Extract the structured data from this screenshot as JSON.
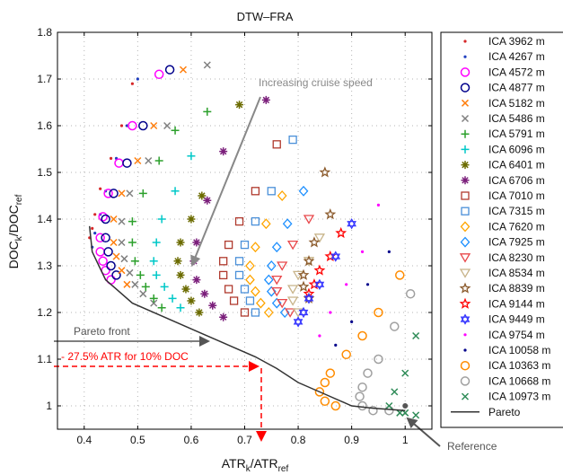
{
  "chart_data": {
    "type": "scatter",
    "title": "DTW–FRA",
    "xlabel": {
      "main": "ATR",
      "sub1": "k",
      "mid": "/ATR",
      "sub2": "ref"
    },
    "ylabel": {
      "main": "DOC",
      "sub1": "k",
      "mid": "/DOC",
      "sub2": "ref"
    },
    "xlim": [
      0.35,
      1.05
    ],
    "ylim": [
      0.95,
      1.8
    ],
    "xticks": [
      0.4,
      0.5,
      0.6,
      0.7,
      0.8,
      0.9,
      1
    ],
    "yticks": [
      1,
      1.1,
      1.2,
      1.3,
      1.4,
      1.5,
      1.6,
      1.7,
      1.8
    ],
    "xtick_labels": [
      "0.4",
      "0.5",
      "0.6",
      "0.7",
      "0.8",
      "0.9",
      "1"
    ],
    "ytick_labels": [
      "1",
      "1.1",
      "1.2",
      "1.3",
      "1.4",
      "1.5",
      "1.6",
      "1.7",
      "1.8"
    ],
    "grid": true,
    "legend_position": "right-outside",
    "series": [
      {
        "name": "ICA 3962 m",
        "color": "#d62728",
        "marker": "dot",
        "points": [
          [
            0.49,
            1.69
          ],
          [
            0.47,
            1.6
          ],
          [
            0.45,
            1.53
          ],
          [
            0.43,
            1.465
          ],
          [
            0.42,
            1.41
          ],
          [
            0.415,
            1.38
          ],
          [
            0.41,
            1.36
          ]
        ]
      },
      {
        "name": "ICA 4267 m",
        "color": "#1f3fbf",
        "marker": "dot",
        "points": [
          [
            0.5,
            1.7
          ],
          [
            0.48,
            1.6
          ],
          [
            0.46,
            1.53
          ],
          [
            0.44,
            1.46
          ],
          [
            0.43,
            1.41
          ],
          [
            0.42,
            1.37
          ],
          [
            0.415,
            1.34
          ]
        ]
      },
      {
        "name": "ICA 4572 m",
        "color": "#ff00ff",
        "marker": "circle",
        "points": [
          [
            0.54,
            1.71
          ],
          [
            0.49,
            1.6
          ],
          [
            0.465,
            1.52
          ],
          [
            0.445,
            1.455
          ],
          [
            0.435,
            1.405
          ],
          [
            0.43,
            1.36
          ],
          [
            0.43,
            1.33
          ],
          [
            0.435,
            1.31
          ],
          [
            0.44,
            1.29
          ],
          [
            0.45,
            1.27
          ]
        ]
      },
      {
        "name": "ICA 4877 m",
        "color": "#00008b",
        "marker": "circle",
        "points": [
          [
            0.56,
            1.72
          ],
          [
            0.51,
            1.6
          ],
          [
            0.48,
            1.52
          ],
          [
            0.455,
            1.455
          ],
          [
            0.44,
            1.4
          ],
          [
            0.44,
            1.36
          ],
          [
            0.445,
            1.33
          ],
          [
            0.45,
            1.3
          ],
          [
            0.46,
            1.28
          ]
        ]
      },
      {
        "name": "ICA 5182 m",
        "color": "#ff7f0e",
        "marker": "x",
        "points": [
          [
            0.585,
            1.72
          ],
          [
            0.53,
            1.6
          ],
          [
            0.5,
            1.525
          ],
          [
            0.47,
            1.455
          ],
          [
            0.455,
            1.4
          ],
          [
            0.455,
            1.35
          ],
          [
            0.46,
            1.32
          ],
          [
            0.47,
            1.29
          ],
          [
            0.48,
            1.26
          ]
        ]
      },
      {
        "name": "ICA 5486 m",
        "color": "#808080",
        "marker": "x",
        "points": [
          [
            0.63,
            1.73
          ],
          [
            0.555,
            1.6
          ],
          [
            0.52,
            1.525
          ],
          [
            0.485,
            1.455
          ],
          [
            0.47,
            1.395
          ],
          [
            0.47,
            1.35
          ],
          [
            0.475,
            1.315
          ],
          [
            0.485,
            1.285
          ],
          [
            0.495,
            1.26
          ],
          [
            0.51,
            1.24
          ],
          [
            0.53,
            1.22
          ]
        ]
      },
      {
        "name": "ICA 5791 m",
        "color": "#2ca02c",
        "marker": "plus",
        "points": [
          [
            0.63,
            1.63
          ],
          [
            0.57,
            1.59
          ],
          [
            0.54,
            1.525
          ],
          [
            0.51,
            1.455
          ],
          [
            0.49,
            1.395
          ],
          [
            0.49,
            1.35
          ],
          [
            0.495,
            1.31
          ],
          [
            0.505,
            1.28
          ],
          [
            0.515,
            1.255
          ],
          [
            0.53,
            1.23
          ],
          [
            0.545,
            1.21
          ]
        ]
      },
      {
        "name": "ICA 6096 m",
        "color": "#00c8c8",
        "marker": "plus",
        "points": [
          [
            0.6,
            1.535
          ],
          [
            0.57,
            1.46
          ],
          [
            0.545,
            1.4
          ],
          [
            0.535,
            1.35
          ],
          [
            0.53,
            1.31
          ],
          [
            0.535,
            1.28
          ],
          [
            0.55,
            1.255
          ],
          [
            0.565,
            1.23
          ],
          [
            0.58,
            1.21
          ]
        ]
      },
      {
        "name": "ICA 6401 m",
        "color": "#6b6b00",
        "marker": "asterisk",
        "points": [
          [
            0.69,
            1.645
          ],
          [
            0.62,
            1.45
          ],
          [
            0.6,
            1.4
          ],
          [
            0.58,
            1.35
          ],
          [
            0.575,
            1.31
          ],
          [
            0.58,
            1.28
          ],
          [
            0.59,
            1.25
          ],
          [
            0.6,
            1.225
          ],
          [
            0.615,
            1.2
          ]
        ]
      },
      {
        "name": "ICA 6706 m",
        "color": "#7b1f7b",
        "marker": "asterisk",
        "points": [
          [
            0.74,
            1.655
          ],
          [
            0.66,
            1.545
          ],
          [
            0.63,
            1.44
          ],
          [
            0.61,
            1.35
          ],
          [
            0.605,
            1.31
          ],
          [
            0.61,
            1.27
          ],
          [
            0.625,
            1.24
          ],
          [
            0.64,
            1.215
          ],
          [
            0.66,
            1.19
          ]
        ]
      },
      {
        "name": "ICA 7010 m",
        "color": "#b03a2e",
        "marker": "square",
        "points": [
          [
            0.76,
            1.56
          ],
          [
            0.72,
            1.46
          ],
          [
            0.69,
            1.395
          ],
          [
            0.67,
            1.345
          ],
          [
            0.66,
            1.31
          ],
          [
            0.66,
            1.28
          ],
          [
            0.67,
            1.25
          ],
          [
            0.68,
            1.225
          ],
          [
            0.7,
            1.2
          ]
        ]
      },
      {
        "name": "ICA 7315 m",
        "color": "#4a90d9",
        "marker": "square",
        "points": [
          [
            0.79,
            1.57
          ],
          [
            0.75,
            1.46
          ],
          [
            0.72,
            1.395
          ],
          [
            0.7,
            1.345
          ],
          [
            0.69,
            1.31
          ],
          [
            0.69,
            1.28
          ],
          [
            0.7,
            1.25
          ],
          [
            0.71,
            1.225
          ],
          [
            0.72,
            1.2
          ]
        ]
      },
      {
        "name": "ICA 7620 m",
        "color": "#ffa500",
        "marker": "diamond",
        "points": [
          [
            0.77,
            1.45
          ],
          [
            0.74,
            1.39
          ],
          [
            0.72,
            1.34
          ],
          [
            0.71,
            1.3
          ],
          [
            0.71,
            1.27
          ],
          [
            0.72,
            1.245
          ],
          [
            0.73,
            1.22
          ],
          [
            0.745,
            1.2
          ]
        ]
      },
      {
        "name": "ICA 7925 m",
        "color": "#1e90ff",
        "marker": "diamond",
        "points": [
          [
            0.81,
            1.46
          ],
          [
            0.78,
            1.39
          ],
          [
            0.76,
            1.34
          ],
          [
            0.75,
            1.3
          ],
          [
            0.745,
            1.27
          ],
          [
            0.75,
            1.245
          ],
          [
            0.76,
            1.22
          ],
          [
            0.775,
            1.2
          ]
        ]
      },
      {
        "name": "ICA 8230 m",
        "color": "#e8474a",
        "marker": "triangle-down",
        "points": [
          [
            0.82,
            1.4
          ],
          [
            0.79,
            1.345
          ],
          [
            0.77,
            1.3
          ],
          [
            0.76,
            1.27
          ],
          [
            0.76,
            1.245
          ],
          [
            0.77,
            1.22
          ],
          [
            0.785,
            1.2
          ]
        ]
      },
      {
        "name": "ICA 8534 m",
        "color": "#c8b48a",
        "marker": "triangle-down",
        "points": [
          [
            0.84,
            1.36
          ],
          [
            0.82,
            1.31
          ],
          [
            0.8,
            1.28
          ],
          [
            0.79,
            1.25
          ],
          [
            0.79,
            1.225
          ],
          [
            0.8,
            1.2
          ]
        ]
      },
      {
        "name": "ICA 8839 m",
        "color": "#8b5a2b",
        "marker": "star",
        "points": [
          [
            0.85,
            1.5
          ],
          [
            0.86,
            1.41
          ],
          [
            0.83,
            1.35
          ],
          [
            0.82,
            1.31
          ],
          [
            0.81,
            1.28
          ],
          [
            0.81,
            1.255
          ],
          [
            0.82,
            1.23
          ]
        ]
      },
      {
        "name": "ICA 9144 m",
        "color": "#ff0000",
        "marker": "star",
        "points": [
          [
            0.88,
            1.37
          ],
          [
            0.86,
            1.32
          ],
          [
            0.84,
            1.29
          ],
          [
            0.83,
            1.26
          ],
          [
            0.82,
            1.24
          ]
        ]
      },
      {
        "name": "ICA 9449 m",
        "color": "#3333ff",
        "marker": "hexagram",
        "points": [
          [
            0.9,
            1.39
          ],
          [
            0.87,
            1.32
          ],
          [
            0.84,
            1.26
          ],
          [
            0.82,
            1.23
          ],
          [
            0.81,
            1.2
          ],
          [
            0.8,
            1.18
          ]
        ]
      },
      {
        "name": "ICA 9754 m",
        "color": "#ff00ff",
        "marker": "dot",
        "points": [
          [
            0.95,
            1.43
          ],
          [
            0.92,
            1.33
          ],
          [
            0.89,
            1.26
          ],
          [
            0.86,
            1.2
          ],
          [
            0.84,
            1.15
          ]
        ]
      },
      {
        "name": "ICA 10058 m",
        "color": "#00008b",
        "marker": "dot",
        "points": [
          [
            0.97,
            1.33
          ],
          [
            0.93,
            1.26
          ],
          [
            0.9,
            1.18
          ],
          [
            0.87,
            1.13
          ]
        ]
      },
      {
        "name": "ICA 10363 m",
        "color": "#ff8c00",
        "marker": "circle",
        "points": [
          [
            0.99,
            1.28
          ],
          [
            0.95,
            1.2
          ],
          [
            0.92,
            1.15
          ],
          [
            0.89,
            1.11
          ],
          [
            0.86,
            1.07
          ],
          [
            0.85,
            1.05
          ],
          [
            0.84,
            1.03
          ],
          [
            0.85,
            1.01
          ],
          [
            0.87,
            1.0
          ]
        ]
      },
      {
        "name": "ICA 10668 m",
        "color": "#a0a0a0",
        "marker": "circle",
        "points": [
          [
            1.01,
            1.24
          ],
          [
            0.98,
            1.17
          ],
          [
            0.95,
            1.1
          ],
          [
            0.93,
            1.07
          ],
          [
            0.92,
            1.04
          ],
          [
            0.915,
            1.02
          ],
          [
            0.92,
            1.0
          ],
          [
            0.94,
            0.99
          ],
          [
            0.97,
            0.99
          ]
        ]
      },
      {
        "name": "ICA 10973 m",
        "color": "#2e8b57",
        "marker": "x",
        "points": [
          [
            1.02,
            1.15
          ],
          [
            1.0,
            1.07
          ],
          [
            0.98,
            1.03
          ],
          [
            0.97,
            1.0
          ],
          [
            0.99,
            0.985
          ],
          [
            1.0,
            0.985
          ],
          [
            1.02,
            0.98
          ]
        ]
      },
      {
        "name": "Pareto",
        "color": "#333333",
        "marker": "line",
        "points": [
          [
            0.41,
            1.385
          ],
          [
            0.415,
            1.33
          ],
          [
            0.44,
            1.27
          ],
          [
            0.49,
            1.22
          ],
          [
            0.55,
            1.19
          ],
          [
            0.62,
            1.155
          ],
          [
            0.67,
            1.13
          ],
          [
            0.72,
            1.105
          ],
          [
            0.76,
            1.08
          ],
          [
            0.8,
            1.05
          ],
          [
            0.85,
            1.025
          ],
          [
            0.9,
            1.0
          ],
          [
            0.94,
            0.995
          ],
          [
            1.0,
            0.99
          ]
        ]
      }
    ],
    "annotations": [
      {
        "text": "Increasing cruise speed",
        "color": "#888888"
      },
      {
        "text": "Pareto front",
        "color": "#555555"
      },
      {
        "text": "- 27.5% ATR for 10% DOC",
        "color": "#ff0000"
      },
      {
        "text": "Reference",
        "color": "#555555"
      }
    ],
    "reference_point": [
      1.0,
      1.0
    ]
  }
}
